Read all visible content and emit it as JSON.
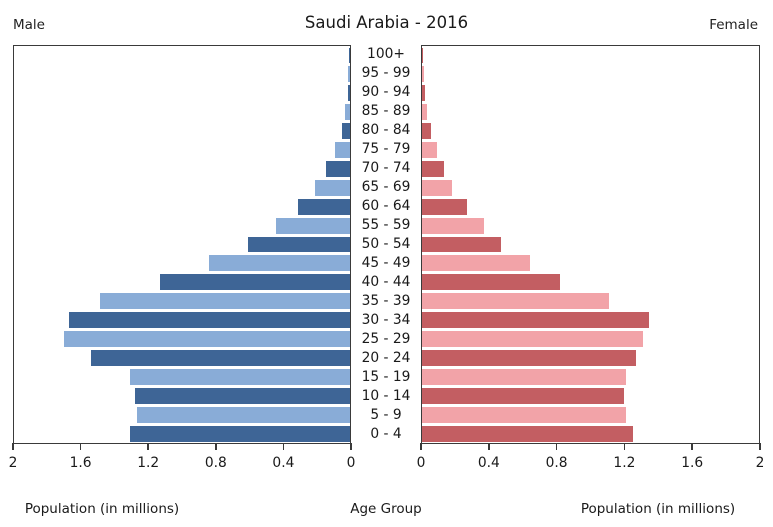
{
  "header": {
    "male_label": "Male",
    "title": "Saudi Arabia - 2016",
    "female_label": "Female"
  },
  "footer": {
    "left_caption": "Population (in millions)",
    "center_caption": "Age Group",
    "right_caption": "Population (in millions)"
  },
  "colors": {
    "male_dark": "#3E6596",
    "male_light": "#89ACD7",
    "female_dark": "#C35E62",
    "female_light": "#F2A3A8",
    "frame": "#3A3A3A",
    "text": "#222222"
  },
  "chart_data": {
    "type": "bar",
    "subtype": "population-pyramid",
    "title": "Saudi Arabia - 2016",
    "left_series_label": "Male",
    "right_series_label": "Female",
    "center_axis_label": "Age Group",
    "xlabel": "Population (in millions)",
    "x_max_millions": 2,
    "grid": false,
    "legend_position": "none",
    "categories_top_to_bottom": [
      "100+",
      "95 - 99",
      "90 - 94",
      "85 - 89",
      "80 - 84",
      "75 - 79",
      "70 - 74",
      "65 - 69",
      "60 - 64",
      "55 - 59",
      "50 - 54",
      "45 - 49",
      "40 - 44",
      "35 - 39",
      "30 - 34",
      "25 - 29",
      "20 - 24",
      "15 - 19",
      "10 - 14",
      "5 - 9",
      "0 - 4"
    ],
    "series": [
      {
        "name": "Male",
        "side": "left",
        "values": [
          0.005,
          0.01,
          0.01,
          0.03,
          0.05,
          0.09,
          0.14,
          0.21,
          0.31,
          0.44,
          0.61,
          0.84,
          1.13,
          1.49,
          1.67,
          1.7,
          1.54,
          1.31,
          1.28,
          1.27,
          1.31
        ]
      },
      {
        "name": "Female",
        "side": "right",
        "values": [
          0.005,
          0.01,
          0.015,
          0.03,
          0.055,
          0.09,
          0.13,
          0.18,
          0.27,
          0.37,
          0.47,
          0.64,
          0.82,
          1.11,
          1.35,
          1.31,
          1.27,
          1.21,
          1.2,
          1.21,
          1.25
        ]
      }
    ],
    "x_axis": {
      "left_tick_labels": [
        "2",
        "1.6",
        "1.2",
        "0.8",
        "0.4",
        "0"
      ],
      "right_tick_labels": [
        "0",
        "0.4",
        "0.8",
        "1.2",
        "1.6",
        "2"
      ],
      "tick_step_millions": 0.4
    }
  }
}
